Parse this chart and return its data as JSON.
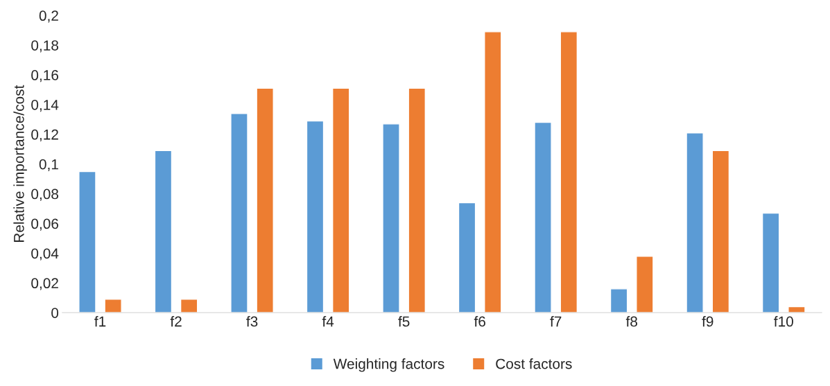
{
  "chart_data": {
    "type": "bar",
    "ylabel": "Relative importance/cost",
    "categories": [
      "f1",
      "f2",
      "f3",
      "f4",
      "f5",
      "f6",
      "f7",
      "f8",
      "f9",
      "f10"
    ],
    "series": [
      {
        "name": "Weighting factors",
        "color": "#5b9bd5",
        "values": [
          0.095,
          0.109,
          0.134,
          0.129,
          0.127,
          0.074,
          0.128,
          0.016,
          0.121,
          0.067
        ]
      },
      {
        "name": "Cost factors",
        "color": "#ed7d31",
        "values": [
          0.009,
          0.009,
          0.151,
          0.151,
          0.151,
          0.189,
          0.189,
          0.038,
          0.109,
          0.004
        ]
      }
    ],
    "ylim": [
      0,
      0.2
    ],
    "yticks": [
      0,
      {
        "value": 0.02,
        "label": "0,02"
      },
      {
        "value": 0.04,
        "label": "0,04"
      },
      {
        "value": 0.06,
        "label": "0,06"
      },
      {
        "value": 0.08,
        "label": "0,08"
      },
      {
        "value": 0.1,
        "label": "0,1"
      },
      {
        "value": 0.12,
        "label": "0,12"
      },
      {
        "value": 0.14,
        "label": "0,14"
      },
      {
        "value": 0.16,
        "label": "0,16"
      },
      {
        "value": 0.18,
        "label": "0,18"
      },
      {
        "value": 0.2,
        "label": "0,2"
      }
    ],
    "grid": false,
    "legend": "bottom"
  }
}
